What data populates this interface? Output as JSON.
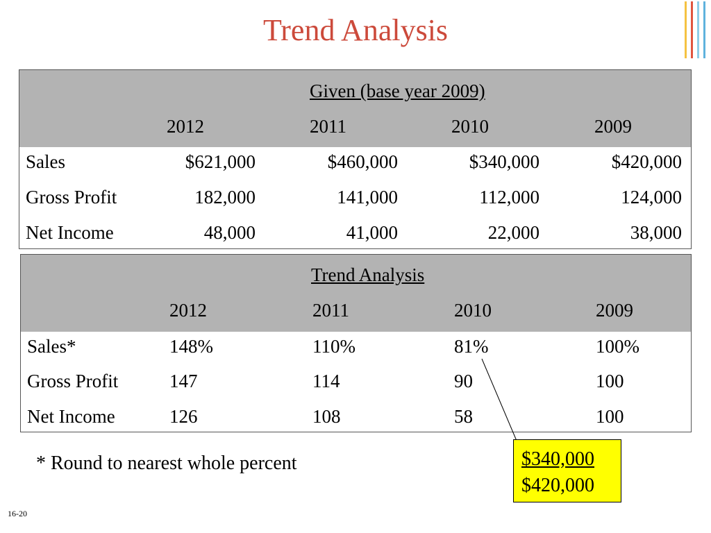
{
  "title": "Trend Analysis",
  "deco_colors": [
    "#f5c242",
    "#e0553f",
    "#8fcde8",
    "#5fb2dd"
  ],
  "given_table": {
    "header": "Given (base year 2009)",
    "years": [
      "2012",
      "2011",
      "2010",
      "2009"
    ],
    "rows": [
      {
        "label": "Sales",
        "values": [
          "$621,000",
          "$460,000",
          "$340,000",
          "$420,000"
        ]
      },
      {
        "label": "Gross Profit",
        "values": [
          "182,000",
          "141,000",
          "112,000",
          "124,000"
        ]
      },
      {
        "label": "Net Income",
        "values": [
          "48,000",
          "41,000",
          "22,000",
          "38,000"
        ]
      }
    ]
  },
  "trend_table": {
    "header": "Trend Analysis",
    "years": [
      "2012",
      "2011",
      "2010",
      "2009"
    ],
    "rows": [
      {
        "label": "Sales*",
        "values": [
          "148%",
          "110%",
          "81%",
          "100%"
        ]
      },
      {
        "label": "Gross Profit",
        "values": [
          "147",
          "114",
          "90",
          "100"
        ]
      },
      {
        "label": "Net Income",
        "values": [
          "126",
          "108",
          "58",
          "100"
        ]
      }
    ]
  },
  "footnote": "* Round to nearest whole percent",
  "callout": {
    "numerator": "$340,000",
    "denominator": "$420,000"
  },
  "slide_number": "16-20",
  "colors": {
    "title": "#cc4a3b",
    "header_bg": "#b3b3b3",
    "callout_bg": "#ffff00"
  }
}
